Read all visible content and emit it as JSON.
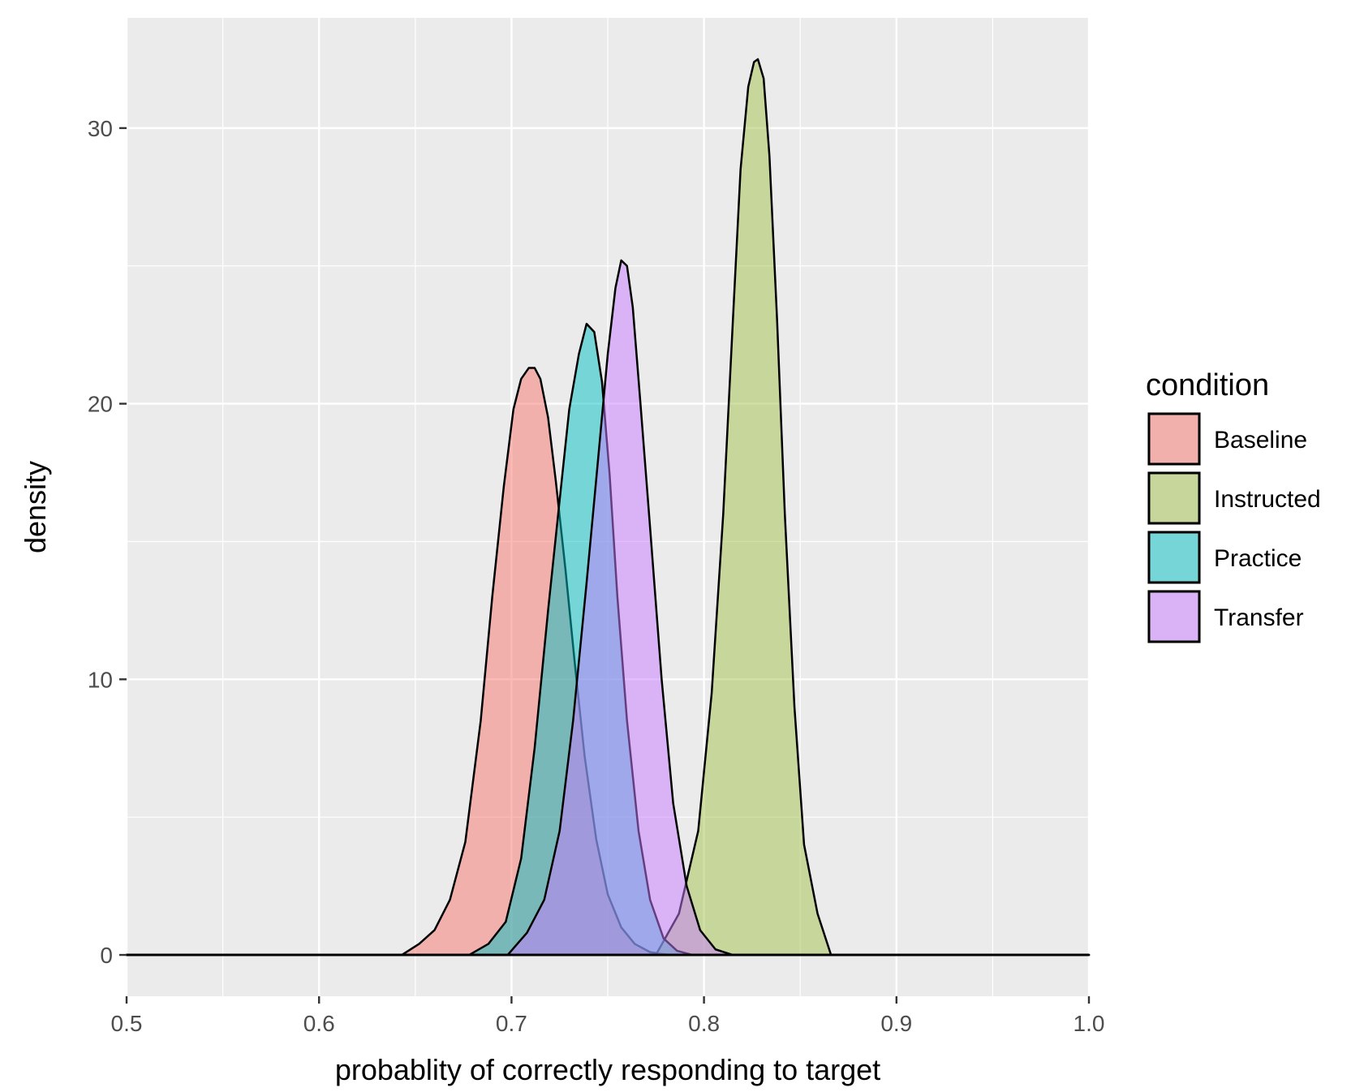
{
  "chart_data": {
    "type": "area",
    "xlabel": "probablity of correctly responding to target",
    "ylabel": "density",
    "xlim": [
      0.5,
      1.0
    ],
    "ylim": [
      -1.5,
      34
    ],
    "x_ticks": [
      0.5,
      0.6,
      0.7,
      0.8,
      0.9,
      1.0
    ],
    "x_tick_labels": [
      "0.5",
      "0.6",
      "0.7",
      "0.8",
      "0.9",
      "1.0"
    ],
    "y_ticks": [
      0,
      10,
      20,
      30
    ],
    "y_tick_labels": [
      "0",
      "10",
      "20",
      "30"
    ],
    "grid": true,
    "background": "#ebebeb",
    "legend": {
      "title": "condition",
      "position": "right"
    },
    "series": [
      {
        "name": "Baseline",
        "color": "#f8766d",
        "x": [
          0.643,
          0.652,
          0.66,
          0.668,
          0.676,
          0.684,
          0.69,
          0.696,
          0.701,
          0.705,
          0.709,
          0.712,
          0.715,
          0.719,
          0.723,
          0.728,
          0.733,
          0.738,
          0.744,
          0.75,
          0.757,
          0.764,
          0.772,
          0.782
        ],
        "y": [
          0,
          0.4,
          0.9,
          2.0,
          4.1,
          8.5,
          13.0,
          17.0,
          19.8,
          20.9,
          21.3,
          21.3,
          20.9,
          19.5,
          17.2,
          14.0,
          10.5,
          7.2,
          4.2,
          2.2,
          1.0,
          0.4,
          0.1,
          0
        ]
      },
      {
        "name": "Instructed",
        "color": "#a3c14a",
        "x": [
          0.775,
          0.787,
          0.797,
          0.804,
          0.81,
          0.815,
          0.819,
          0.823,
          0.826,
          0.828,
          0.831,
          0.834,
          0.838,
          0.842,
          0.847,
          0.852,
          0.859,
          0.866
        ],
        "y": [
          0,
          1.5,
          4.5,
          9.5,
          16.0,
          23.0,
          28.5,
          31.5,
          32.4,
          32.5,
          31.8,
          29.0,
          23.0,
          16.0,
          9.0,
          4.0,
          1.5,
          0
        ]
      },
      {
        "name": "Practice",
        "color": "#00bfc4",
        "x": [
          0.678,
          0.688,
          0.697,
          0.705,
          0.712,
          0.719,
          0.725,
          0.73,
          0.735,
          0.739,
          0.743,
          0.747,
          0.751,
          0.755,
          0.76,
          0.766,
          0.772,
          0.779,
          0.786,
          0.794
        ],
        "y": [
          0,
          0.4,
          1.2,
          3.5,
          7.5,
          12.5,
          16.5,
          19.8,
          21.8,
          22.9,
          22.6,
          20.8,
          17.4,
          13.0,
          8.5,
          4.5,
          2.0,
          0.6,
          0.15,
          0
        ]
      },
      {
        "name": "Transfer",
        "color": "#c77cff",
        "x": [
          0.698,
          0.708,
          0.717,
          0.725,
          0.732,
          0.739,
          0.745,
          0.75,
          0.754,
          0.757,
          0.76,
          0.763,
          0.767,
          0.772,
          0.778,
          0.784,
          0.791,
          0.798,
          0.806,
          0.815
        ],
        "y": [
          0,
          0.8,
          2.0,
          4.5,
          8.5,
          13.5,
          18.0,
          21.8,
          24.2,
          25.2,
          25.0,
          23.5,
          20.0,
          15.5,
          10.0,
          5.5,
          2.5,
          0.9,
          0.2,
          0
        ]
      }
    ]
  }
}
